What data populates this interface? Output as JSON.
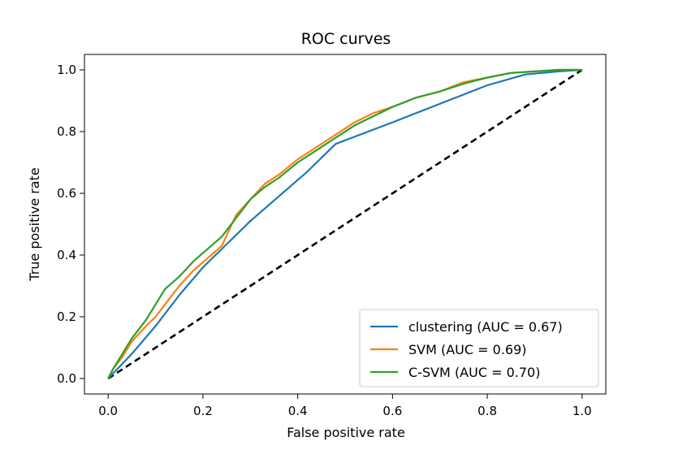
{
  "chart_data": {
    "type": "line",
    "title": "ROC curves",
    "xlabel": "False positive rate",
    "ylabel": "True positive rate",
    "xlim": [
      -0.05,
      1.05
    ],
    "ylim": [
      -0.05,
      1.05
    ],
    "xticks": [
      0.0,
      0.2,
      0.4,
      0.6,
      0.8,
      1.0
    ],
    "yticks": [
      0.0,
      0.2,
      0.4,
      0.6,
      0.8,
      1.0
    ],
    "xtick_labels": [
      "0.0",
      "0.2",
      "0.4",
      "0.6",
      "0.8",
      "1.0"
    ],
    "ytick_labels": [
      "0.0",
      "0.2",
      "0.4",
      "0.6",
      "0.8",
      "1.0"
    ],
    "grid": false,
    "legend_position": "lower-right",
    "series": [
      {
        "name": "clustering (AUC = 0.67)",
        "color": "#1f77b4",
        "x": [
          0.0,
          0.05,
          0.1,
          0.15,
          0.2,
          0.24,
          0.3,
          0.36,
          0.42,
          0.48,
          0.6,
          0.7,
          0.8,
          0.88,
          0.95,
          1.0
        ],
        "y": [
          0.0,
          0.08,
          0.17,
          0.27,
          0.36,
          0.42,
          0.51,
          0.59,
          0.67,
          0.76,
          0.83,
          0.89,
          0.95,
          0.985,
          0.995,
          1.0
        ]
      },
      {
        "name": "SVM (AUC = 0.69)",
        "color": "#ff7f0e",
        "x": [
          0.0,
          0.01,
          0.03,
          0.05,
          0.08,
          0.1,
          0.12,
          0.15,
          0.18,
          0.21,
          0.24,
          0.27,
          0.3,
          0.33,
          0.36,
          0.4,
          0.44,
          0.48,
          0.52,
          0.56,
          0.6,
          0.65,
          0.7,
          0.75,
          0.8,
          0.85,
          0.9,
          0.95,
          1.0
        ],
        "y": [
          0.0,
          0.03,
          0.07,
          0.12,
          0.17,
          0.2,
          0.24,
          0.3,
          0.35,
          0.39,
          0.43,
          0.53,
          0.58,
          0.63,
          0.66,
          0.71,
          0.75,
          0.79,
          0.83,
          0.86,
          0.88,
          0.91,
          0.93,
          0.96,
          0.975,
          0.99,
          0.995,
          1.0,
          1.0
        ]
      },
      {
        "name": "C-SVM (AUC = 0.70)",
        "color": "#2ca02c",
        "x": [
          0.0,
          0.01,
          0.03,
          0.05,
          0.08,
          0.1,
          0.12,
          0.15,
          0.18,
          0.21,
          0.24,
          0.27,
          0.3,
          0.33,
          0.36,
          0.4,
          0.44,
          0.48,
          0.52,
          0.56,
          0.6,
          0.65,
          0.7,
          0.75,
          0.8,
          0.85,
          0.9,
          0.95,
          1.0
        ],
        "y": [
          0.0,
          0.03,
          0.08,
          0.13,
          0.19,
          0.24,
          0.29,
          0.33,
          0.38,
          0.42,
          0.46,
          0.52,
          0.58,
          0.62,
          0.65,
          0.7,
          0.74,
          0.78,
          0.82,
          0.85,
          0.88,
          0.91,
          0.93,
          0.955,
          0.975,
          0.99,
          0.995,
          1.0,
          1.0
        ]
      },
      {
        "name": "chance",
        "color": "#000000",
        "dashed": true,
        "x": [
          0.0,
          1.0
        ],
        "y": [
          0.0,
          1.0
        ]
      }
    ],
    "legend": [
      "clustering (AUC = 0.67)",
      "SVM (AUC = 0.69)",
      "C-SVM (AUC = 0.70)"
    ]
  }
}
